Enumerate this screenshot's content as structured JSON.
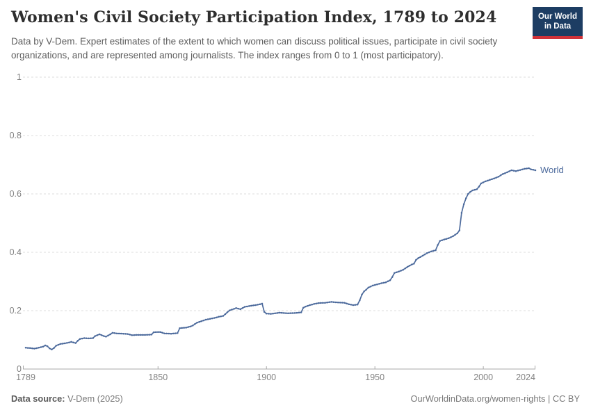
{
  "header": {
    "title": "Women's Civil Society Participation Index, 1789 to 2024",
    "subtitle": "Data by V-Dem. Expert estimates of the extent to which women can discuss political issues, participate in civil society organizations, and are represented among journalists. The index ranges from 0 to 1 (most participatory).",
    "logo": {
      "line1": "Our World",
      "line2": "in Data",
      "bg_color": "#1d3d63",
      "accent_color": "#d13239"
    }
  },
  "chart_data": {
    "type": "line",
    "title": "Women's Civil Society Participation Index, 1789 to 2024",
    "xlabel": "",
    "ylabel": "",
    "xlim": [
      1789,
      2024
    ],
    "ylim": [
      0,
      1
    ],
    "x_ticks": [
      1789,
      1850,
      1900,
      1950,
      2000,
      2024
    ],
    "y_ticks": [
      0,
      0.2,
      0.4,
      0.6,
      0.8,
      1
    ],
    "grid": "dashed-horizontal",
    "legend": "inline-end-label",
    "interpolation": "linear, one dot per year",
    "series": [
      {
        "name": "World",
        "color": "#4c6a9c",
        "points": [
          [
            1789,
            0.073
          ],
          [
            1791,
            0.072
          ],
          [
            1793,
            0.07
          ],
          [
            1795,
            0.073
          ],
          [
            1797,
            0.077
          ],
          [
            1798,
            0.081
          ],
          [
            1799,
            0.078
          ],
          [
            1800,
            0.071
          ],
          [
            1801,
            0.067
          ],
          [
            1802,
            0.072
          ],
          [
            1803,
            0.08
          ],
          [
            1805,
            0.086
          ],
          [
            1807,
            0.088
          ],
          [
            1809,
            0.091
          ],
          [
            1810,
            0.093
          ],
          [
            1812,
            0.089
          ],
          [
            1813,
            0.097
          ],
          [
            1814,
            0.103
          ],
          [
            1816,
            0.106
          ],
          [
            1818,
            0.105
          ],
          [
            1820,
            0.106
          ],
          [
            1821,
            0.113
          ],
          [
            1823,
            0.119
          ],
          [
            1825,
            0.113
          ],
          [
            1826,
            0.111
          ],
          [
            1828,
            0.119
          ],
          [
            1829,
            0.124
          ],
          [
            1831,
            0.122
          ],
          [
            1834,
            0.121
          ],
          [
            1836,
            0.12
          ],
          [
            1838,
            0.116
          ],
          [
            1840,
            0.117
          ],
          [
            1844,
            0.117
          ],
          [
            1847,
            0.118
          ],
          [
            1848,
            0.126
          ],
          [
            1851,
            0.127
          ],
          [
            1853,
            0.122
          ],
          [
            1856,
            0.121
          ],
          [
            1859,
            0.123
          ],
          [
            1860,
            0.14
          ],
          [
            1863,
            0.142
          ],
          [
            1865,
            0.146
          ],
          [
            1866,
            0.149
          ],
          [
            1868,
            0.159
          ],
          [
            1870,
            0.164
          ],
          [
            1872,
            0.169
          ],
          [
            1874,
            0.172
          ],
          [
            1876,
            0.175
          ],
          [
            1878,
            0.179
          ],
          [
            1880,
            0.182
          ],
          [
            1881,
            0.188
          ],
          [
            1882,
            0.195
          ],
          [
            1883,
            0.201
          ],
          [
            1885,
            0.206
          ],
          [
            1886,
            0.209
          ],
          [
            1888,
            0.205
          ],
          [
            1889,
            0.209
          ],
          [
            1890,
            0.213
          ],
          [
            1893,
            0.217
          ],
          [
            1895,
            0.219
          ],
          [
            1897,
            0.222
          ],
          [
            1898,
            0.224
          ],
          [
            1899,
            0.196
          ],
          [
            1900,
            0.19
          ],
          [
            1902,
            0.189
          ],
          [
            1904,
            0.191
          ],
          [
            1906,
            0.193
          ],
          [
            1908,
            0.192
          ],
          [
            1910,
            0.191
          ],
          [
            1913,
            0.192
          ],
          [
            1916,
            0.194
          ],
          [
            1917,
            0.21
          ],
          [
            1918,
            0.214
          ],
          [
            1920,
            0.219
          ],
          [
            1922,
            0.223
          ],
          [
            1924,
            0.226
          ],
          [
            1927,
            0.227
          ],
          [
            1930,
            0.23
          ],
          [
            1933,
            0.228
          ],
          [
            1936,
            0.227
          ],
          [
            1938,
            0.222
          ],
          [
            1940,
            0.219
          ],
          [
            1942,
            0.221
          ],
          [
            1943,
            0.235
          ],
          [
            1944,
            0.255
          ],
          [
            1945,
            0.266
          ],
          [
            1946,
            0.272
          ],
          [
            1947,
            0.279
          ],
          [
            1949,
            0.286
          ],
          [
            1951,
            0.29
          ],
          [
            1953,
            0.294
          ],
          [
            1955,
            0.297
          ],
          [
            1957,
            0.304
          ],
          [
            1958,
            0.315
          ],
          [
            1959,
            0.329
          ],
          [
            1961,
            0.334
          ],
          [
            1963,
            0.34
          ],
          [
            1965,
            0.35
          ],
          [
            1967,
            0.358
          ],
          [
            1968,
            0.361
          ],
          [
            1969,
            0.374
          ],
          [
            1970,
            0.38
          ],
          [
            1972,
            0.388
          ],
          [
            1974,
            0.397
          ],
          [
            1976,
            0.403
          ],
          [
            1978,
            0.407
          ],
          [
            1979,
            0.425
          ],
          [
            1980,
            0.439
          ],
          [
            1982,
            0.444
          ],
          [
            1984,
            0.448
          ],
          [
            1986,
            0.455
          ],
          [
            1988,
            0.465
          ],
          [
            1989,
            0.475
          ],
          [
            1990,
            0.535
          ],
          [
            1991,
            0.565
          ],
          [
            1992,
            0.585
          ],
          [
            1993,
            0.6
          ],
          [
            1994,
            0.607
          ],
          [
            1995,
            0.612
          ],
          [
            1997,
            0.616
          ],
          [
            1998,
            0.625
          ],
          [
            1999,
            0.636
          ],
          [
            2001,
            0.643
          ],
          [
            2003,
            0.648
          ],
          [
            2005,
            0.653
          ],
          [
            2007,
            0.659
          ],
          [
            2009,
            0.668
          ],
          [
            2011,
            0.674
          ],
          [
            2013,
            0.681
          ],
          [
            2015,
            0.678
          ],
          [
            2017,
            0.682
          ],
          [
            2019,
            0.686
          ],
          [
            2021,
            0.688
          ],
          [
            2022,
            0.684
          ],
          [
            2024,
            0.681
          ]
        ]
      }
    ],
    "style": {
      "grid_color": "#dcdcdc",
      "axis_color": "#a8a8a8",
      "tick_label_color": "#828282"
    }
  },
  "footer": {
    "source_label": "Data source:",
    "source_value": " V-Dem (2025)",
    "credit": "OurWorldinData.org/women-rights | CC BY"
  }
}
